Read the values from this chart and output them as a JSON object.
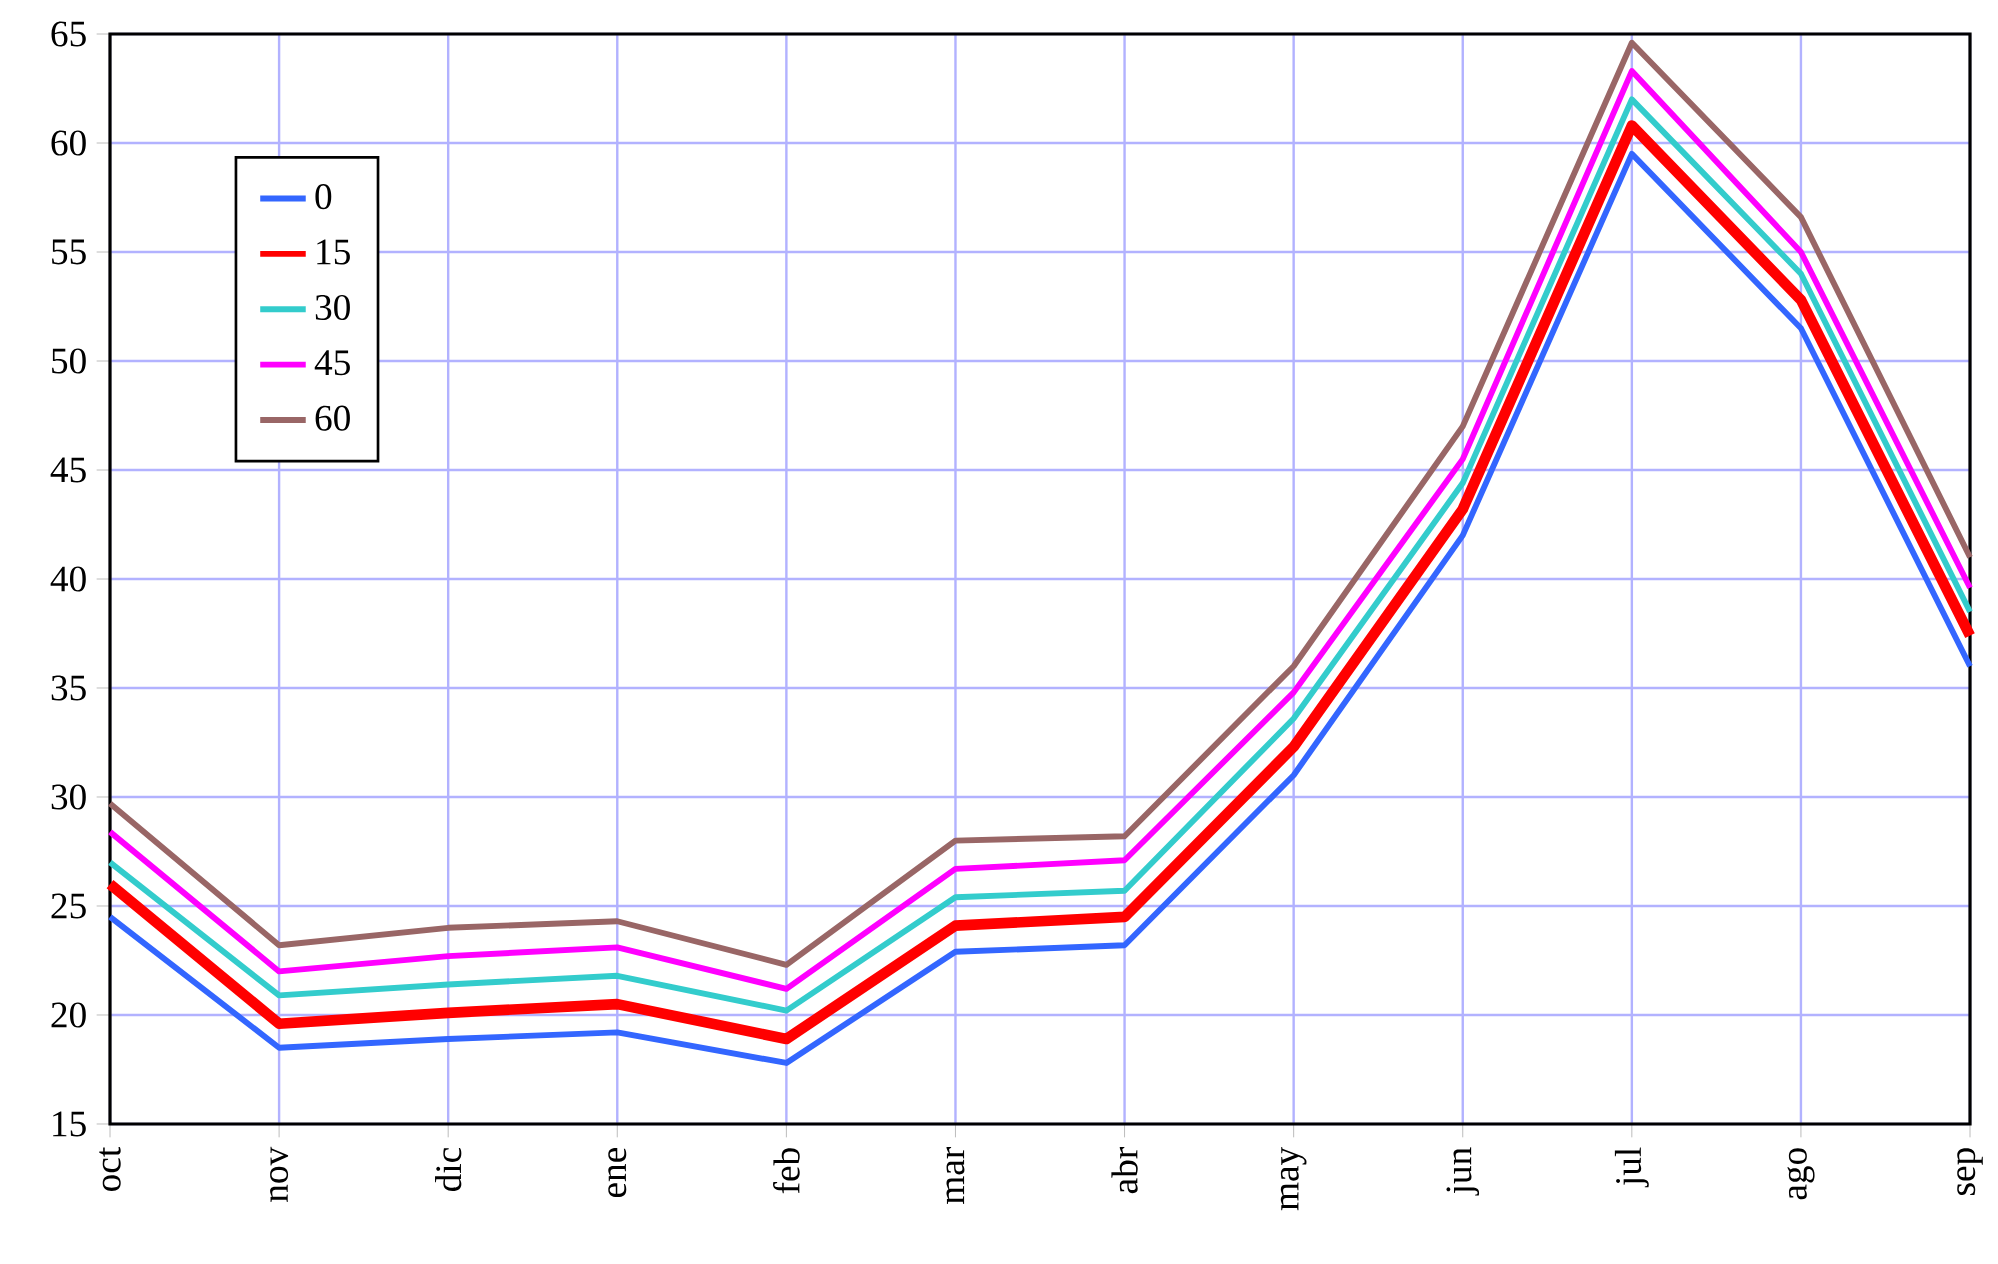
{
  "chart_data": {
    "type": "line",
    "categories": [
      "oct",
      "nov",
      "dic",
      "ene",
      "feb",
      "mar",
      "abr",
      "may",
      "jun",
      "jul",
      "ago",
      "sep"
    ],
    "series": [
      {
        "name": "0",
        "color": "#3366ff",
        "values": [
          24.5,
          18.5,
          18.9,
          19.2,
          17.8,
          22.9,
          23.2,
          31,
          42,
          59.5,
          51.5,
          36
        ]
      },
      {
        "name": "15",
        "color": "#ff0000",
        "values": [
          26,
          19.6,
          20.1,
          20.5,
          18.9,
          24.1,
          24.5,
          32.3,
          43.2,
          60.8,
          52.8,
          37.4
        ]
      },
      {
        "name": "30",
        "color": "#33cccc",
        "values": [
          27,
          20.9,
          21.4,
          21.8,
          20.2,
          25.4,
          25.7,
          33.6,
          44.4,
          62,
          54,
          38.5
        ]
      },
      {
        "name": "45",
        "color": "#ff00ff",
        "values": [
          28.4,
          22,
          22.7,
          23.1,
          21.2,
          26.7,
          27.1,
          34.8,
          45.5,
          63.3,
          55,
          39.6
        ]
      },
      {
        "name": "60",
        "color": "#996666",
        "values": [
          29.7,
          23.2,
          24,
          24.3,
          22.3,
          28,
          28.2,
          36,
          47,
          64.6,
          56.6,
          41
        ]
      }
    ],
    "ylim": [
      15,
      65
    ],
    "yticks": [
      15,
      20,
      25,
      30,
      35,
      40,
      45,
      50,
      55,
      60,
      65
    ],
    "grid": true,
    "legend": "top left",
    "marker": "none",
    "line_style": "solid"
  }
}
